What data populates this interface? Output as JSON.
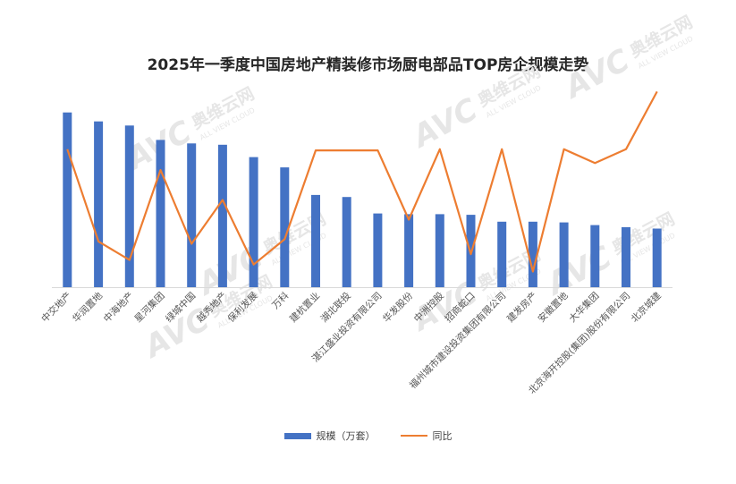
{
  "chart_data": {
    "type": "bar",
    "title": "2025年一季度中国房地产精装修市场厨电部品TOP房企规模走势",
    "categories": [
      "中交地产",
      "华润置地",
      "中海地产",
      "星河集团",
      "绿城中国",
      "越秀地产",
      "保利发展",
      "万科",
      "建杭置业",
      "湖北联投",
      "湛江盛业投资有限公司",
      "华发股份",
      "中洲控股",
      "招商蛇口",
      "福州城市建设投资集团有限公司",
      "建发房产",
      "安徽置地",
      "大华集团",
      "北京海开控股(集团)股份有限公司",
      "北京城建"
    ],
    "series": [
      {
        "name": "规模（万套）",
        "type": "bar",
        "color": "#4472C4",
        "values": [
          2.55,
          2.42,
          2.36,
          2.15,
          2.1,
          2.08,
          1.9,
          1.75,
          1.35,
          1.32,
          1.08,
          1.07,
          1.07,
          1.06,
          0.96,
          0.96,
          0.95,
          0.91,
          0.88,
          0.86
        ]
      },
      {
        "name": "同比",
        "type": "line",
        "color": "#ED7D31",
        "values": [
          120,
          40,
          24,
          102,
          38,
          76,
          20,
          42,
          119,
          119,
          119,
          59,
          120,
          29,
          120,
          14,
          120,
          108,
          120,
          170
        ]
      }
    ],
    "ylim_bar": [
      0,
      3.1
    ],
    "ylim_line": [
      0,
      180
    ],
    "grid": false,
    "legend": "bottom"
  },
  "watermark": {
    "brand": "AVC",
    "cn": "奥维云网",
    "en": "ALL VIEW CLOUD"
  }
}
